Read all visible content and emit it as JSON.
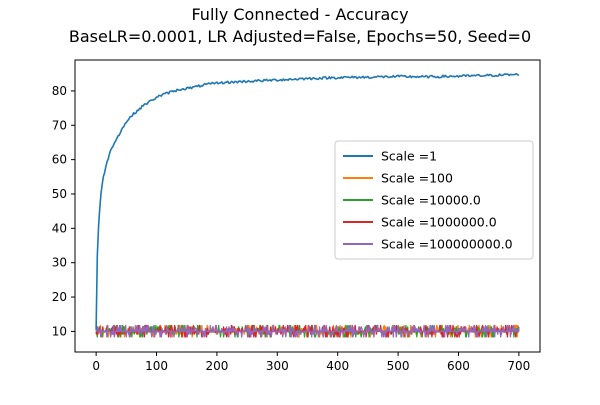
{
  "chart_data": {
    "type": "line",
    "title": "Fully Connected - Accuracy",
    "subtitle": "BaseLR=0.0001, LR Adjusted=False, Epochs=50, Seed=0",
    "xlabel": "",
    "ylabel": "",
    "xlim": [
      -35,
      735
    ],
    "ylim": [
      4,
      89
    ],
    "xticks": [
      0,
      100,
      200,
      300,
      400,
      500,
      600,
      700
    ],
    "yticks": [
      10,
      20,
      30,
      40,
      50,
      60,
      70,
      80
    ],
    "grid": false,
    "legend": "center-right",
    "series": [
      {
        "name": "Scale =1",
        "color": "#1f77b4",
        "kind": "curve",
        "points": [
          [
            0,
            10.5
          ],
          [
            1,
            22
          ],
          [
            2,
            32
          ],
          [
            3,
            38
          ],
          [
            5,
            44
          ],
          [
            8,
            50
          ],
          [
            12,
            55
          ],
          [
            16,
            58
          ],
          [
            20,
            60.5
          ],
          [
            25,
            63
          ],
          [
            30,
            65
          ],
          [
            40,
            68
          ],
          [
            50,
            71
          ],
          [
            60,
            73
          ],
          [
            70,
            74.5
          ],
          [
            80,
            76
          ],
          [
            90,
            77
          ],
          [
            100,
            78.2
          ],
          [
            120,
            79.5
          ],
          [
            140,
            80.5
          ],
          [
            160,
            81
          ],
          [
            180,
            81.8
          ],
          [
            200,
            82.3
          ],
          [
            250,
            82.8
          ],
          [
            300,
            83.2
          ],
          [
            350,
            83.6
          ],
          [
            400,
            83.9
          ],
          [
            450,
            84
          ],
          [
            500,
            84.2
          ],
          [
            550,
            84.1
          ],
          [
            600,
            84.3
          ],
          [
            650,
            84.5
          ],
          [
            700,
            84.8
          ]
        ]
      },
      {
        "name": "Scale =100",
        "color": "#ff7f0e",
        "kind": "noise",
        "points": [
          [
            0,
            9.8
          ],
          [
            700,
            10.2
          ]
        ]
      },
      {
        "name": "Scale =10000.0",
        "color": "#2ca02c",
        "kind": "noise",
        "points": [
          [
            0,
            10
          ],
          [
            700,
            10
          ]
        ]
      },
      {
        "name": "Scale =1000000.0",
        "color": "#d62728",
        "kind": "noise",
        "points": [
          [
            0,
            10
          ],
          [
            700,
            10
          ]
        ]
      },
      {
        "name": "Scale =100000000.0",
        "color": "#9467bd",
        "kind": "noise",
        "points": [
          [
            0,
            10
          ],
          [
            700,
            10
          ]
        ]
      }
    ]
  }
}
